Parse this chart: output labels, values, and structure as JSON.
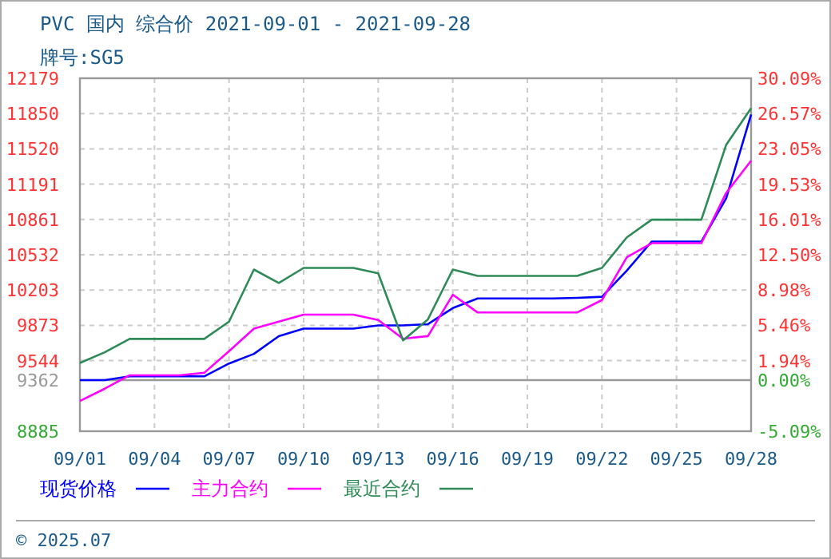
{
  "chart_data": {
    "type": "line",
    "title": "PVC 国内 综合价 2021-09-01 - 2021-09-28",
    "subtitle": "牌号:SG5",
    "x": [
      "2021-09-01",
      "2021-09-02",
      "2021-09-03",
      "2021-09-04",
      "2021-09-05",
      "2021-09-06",
      "2021-09-07",
      "2021-09-08",
      "2021-09-09",
      "2021-09-10",
      "2021-09-11",
      "2021-09-12",
      "2021-09-13",
      "2021-09-14",
      "2021-09-15",
      "2021-09-16",
      "2021-09-17",
      "2021-09-18",
      "2021-09-19",
      "2021-09-20",
      "2021-09-21",
      "2021-09-22",
      "2021-09-23",
      "2021-09-24",
      "2021-09-25",
      "2021-09-26",
      "2021-09-27",
      "2021-09-28"
    ],
    "series": [
      {
        "name": "现货价格",
        "color": "#0000ff",
        "values": [
          9362,
          9362,
          9397,
          9397,
          9397,
          9397,
          9517,
          9607,
          9772,
          9843,
          9843,
          9843,
          9873,
          9873,
          9884,
          10034,
          10124,
          10124,
          10124,
          10124,
          10130,
          10140,
          10384,
          10655,
          10655,
          10655,
          11060,
          11840
        ]
      },
      {
        "name": "主力合约",
        "color": "#ff00ff",
        "values": [
          9167,
          9282,
          9407,
          9407,
          9407,
          9430,
          9632,
          9843,
          9908,
          9973,
          9973,
          9973,
          9923,
          9748,
          9773,
          10159,
          9993,
          9993,
          9993,
          9993,
          9993,
          10109,
          10509,
          10640,
          10640,
          10640,
          11110,
          11410
        ]
      },
      {
        "name": "最近合约",
        "color": "#2e8b57",
        "values": [
          9522,
          9622,
          9747,
          9747,
          9747,
          9747,
          9908,
          10394,
          10269,
          10409,
          10409,
          10409,
          10359,
          9733,
          9929,
          10394,
          10334,
          10334,
          10334,
          10334,
          10334,
          10409,
          10694,
          10859,
          10859,
          10859,
          11559,
          11899
        ]
      }
    ],
    "xlim": [
      "2021-09-01",
      "2021-09-28"
    ],
    "xticks": [
      {
        "value": "2021-09-01",
        "label": "09/01"
      },
      {
        "value": "2021-09-04",
        "label": "09/04"
      },
      {
        "value": "2021-09-07",
        "label": "09/07"
      },
      {
        "value": "2021-09-10",
        "label": "09/10"
      },
      {
        "value": "2021-09-13",
        "label": "09/13"
      },
      {
        "value": "2021-09-16",
        "label": "09/16"
      },
      {
        "value": "2021-09-19",
        "label": "09/19"
      },
      {
        "value": "2021-09-22",
        "label": "09/22"
      },
      {
        "value": "2021-09-25",
        "label": "09/25"
      },
      {
        "value": "2021-09-28",
        "label": "09/28"
      }
    ],
    "ylim": [
      8885,
      12179
    ],
    "yticks": [
      8885,
      9362,
      9544,
      9873,
      10203,
      10532,
      10861,
      11191,
      11520,
      11850,
      12179
    ],
    "y2lim": [
      -5.09,
      30.09
    ],
    "y2ticks": [
      {
        "value": -5.09,
        "label": "-5.09%"
      },
      {
        "value": 0,
        "label": "0.00%"
      },
      {
        "value": 1.94,
        "label": "1.94%"
      },
      {
        "value": 5.46,
        "label": "5.46%"
      },
      {
        "value": 8.98,
        "label": "8.98%"
      },
      {
        "value": 12.5,
        "label": "12.50%"
      },
      {
        "value": 16.01,
        "label": "16.01%"
      },
      {
        "value": 19.53,
        "label": "19.53%"
      },
      {
        "value": 23.05,
        "label": "23.05%"
      },
      {
        "value": 26.57,
        "label": "26.57%"
      },
      {
        "value": 30.09,
        "label": "30.09%"
      }
    ],
    "ref_lines": [
      {
        "axis": "y",
        "value": 9362,
        "color": "#999999"
      }
    ],
    "grid": true,
    "legend": "bottom",
    "line_style": "solid",
    "marker": "none",
    "annotations": [
      "© 2025.07"
    ]
  }
}
